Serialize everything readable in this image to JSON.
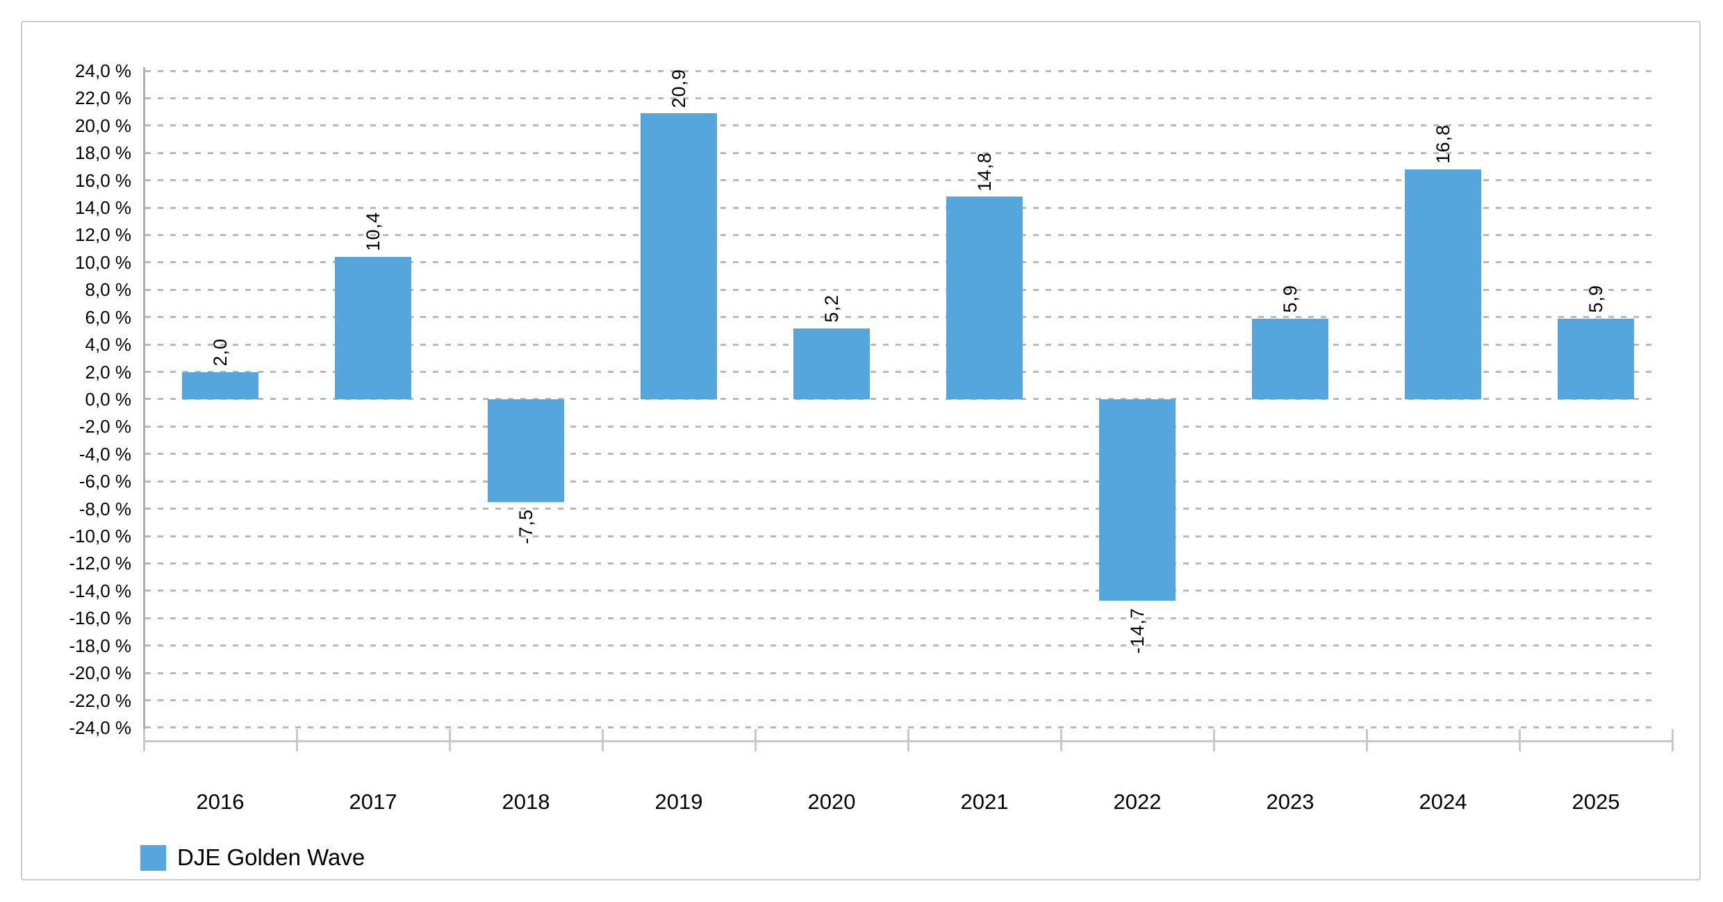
{
  "chart_data": {
    "type": "bar",
    "title": "",
    "xlabel": "",
    "ylabel": "",
    "categories": [
      "2016",
      "2017",
      "2018",
      "2019",
      "2020",
      "2021",
      "2022",
      "2023",
      "2024",
      "2025"
    ],
    "series": [
      {
        "name": "DJE Golden Wave",
        "values": [
          2.0,
          10.4,
          -7.5,
          20.9,
          5.2,
          14.8,
          -14.7,
          5.9,
          16.8,
          5.9
        ],
        "value_labels": [
          "2,0",
          "10,4",
          "-7,5",
          "20,9",
          "5,2",
          "14,8",
          "-14,7",
          "5,9",
          "16,8",
          "5,9"
        ]
      }
    ],
    "ylim": [
      -24,
      24
    ],
    "ytick_step": 2,
    "ytick_labels": [
      "24,0 %",
      "22,0 %",
      "20,0 %",
      "18,0 %",
      "16,0 %",
      "14,0 %",
      "12,0 %",
      "10,0 %",
      "8,0 %",
      "6,0 %",
      "4,0 %",
      "2,0 %",
      "0,0 %",
      "-2,0 %",
      "-4,0 %",
      "-6,0 %",
      "-8,0 %",
      "-10,0 %",
      "-12,0 %",
      "-14,0 %",
      "-16,0 %",
      "-18,0 %",
      "-20,0 %",
      "-22,0 %",
      "-24,0 %"
    ],
    "grid": "horizontal-dashed",
    "legend_position": "bottom-left",
    "value_label_rotation": "vertical-bottom-to-top",
    "colors": {
      "bar": "#55A6DC",
      "grid": "#b9b9b9",
      "axis": "#c9c9c9",
      "y_axis_line": "#aeaeae",
      "frame_border": "#cccccc",
      "text": "#000000"
    }
  },
  "legend": {
    "label": "DJE Golden Wave"
  }
}
